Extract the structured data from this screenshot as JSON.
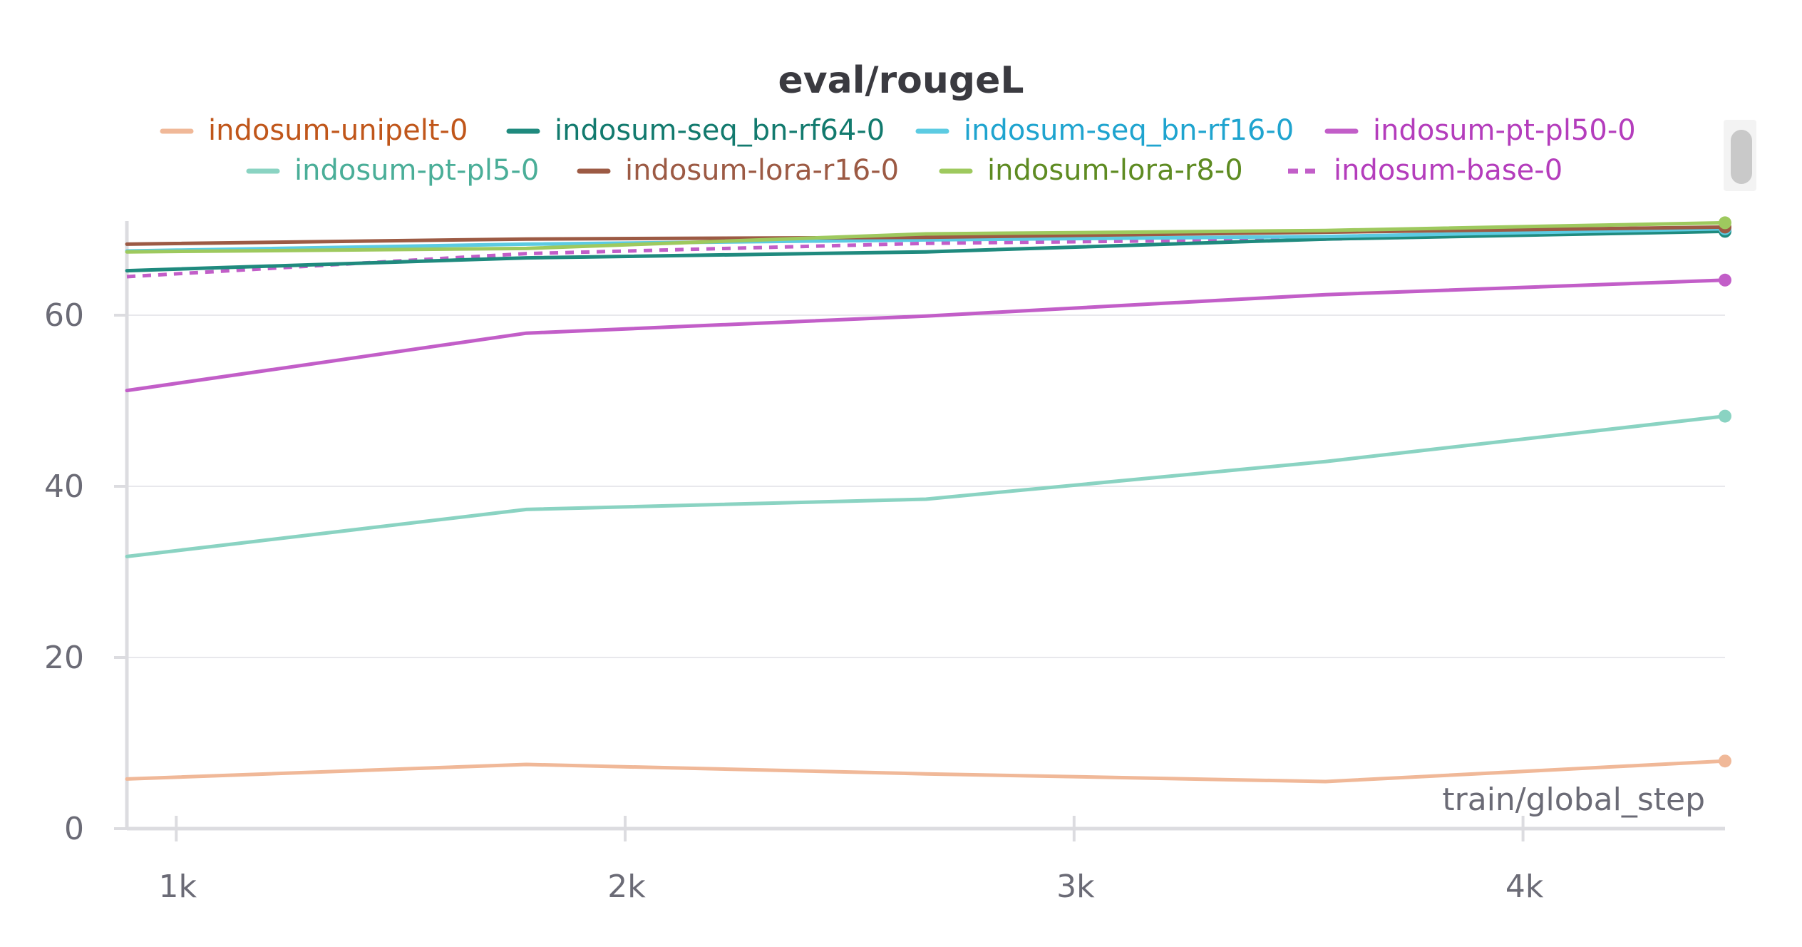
{
  "chart_data": {
    "type": "line",
    "title": "eval/rougeL",
    "xlabel": "train/global_step",
    "ylabel": "",
    "xlim": [
      890,
      4450
    ],
    "ylim": [
      0,
      71
    ],
    "x_ticks": [
      {
        "value": 1000,
        "label": "1k"
      },
      {
        "value": 2000,
        "label": "2k"
      },
      {
        "value": 3000,
        "label": "3k"
      },
      {
        "value": 4000,
        "label": "4k"
      }
    ],
    "y_ticks": [
      {
        "value": 0,
        "label": "0"
      },
      {
        "value": 20,
        "label": "20"
      },
      {
        "value": 40,
        "label": "40"
      },
      {
        "value": 60,
        "label": "60"
      }
    ],
    "grid": true,
    "legend_position": "top",
    "series": [
      {
        "name": "indosum-unipelt-0",
        "color": "#f0b898",
        "text_color": "#c0561a",
        "dashed": false,
        "x": [
          890,
          1780,
          2670,
          3560,
          4450
        ],
        "y": [
          5.8,
          7.5,
          6.4,
          5.5,
          7.9
        ]
      },
      {
        "name": "indosum-seq_bn-rf64-0",
        "color": "#1f8a7e",
        "text_color": "#127a6e",
        "dashed": false,
        "x": [
          890,
          1780,
          2670,
          3560,
          4450
        ],
        "y": [
          65.2,
          66.7,
          67.4,
          68.9,
          69.8
        ]
      },
      {
        "name": "indosum-seq_bn-rf16-0",
        "color": "#5ccbe2",
        "text_color": "#1fa4cf",
        "dashed": false,
        "x": [
          890,
          1780,
          2670,
          3560,
          4450
        ],
        "y": [
          67.5,
          68.3,
          68.8,
          69.2,
          70.1
        ]
      },
      {
        "name": "indosum-pt-pl50-0",
        "color": "#c25ec8",
        "text_color": "#b43dbc",
        "dashed": false,
        "x": [
          890,
          1780,
          2670,
          3560,
          4450
        ],
        "y": [
          51.2,
          57.9,
          59.9,
          62.4,
          64.1
        ]
      },
      {
        "name": "indosum-pt-pl5-0",
        "color": "#8ad3c2",
        "text_color": "#4aae98",
        "dashed": false,
        "x": [
          890,
          1780,
          2670,
          3560,
          4450
        ],
        "y": [
          31.8,
          37.3,
          38.5,
          42.9,
          48.2
        ]
      },
      {
        "name": "indosum-lora-r16-0",
        "color": "#9c5a44",
        "text_color": "#9c5a44",
        "dashed": false,
        "x": [
          890,
          1780,
          2670,
          3560,
          4450
        ],
        "y": [
          68.3,
          68.9,
          69.1,
          69.7,
          70.3
        ]
      },
      {
        "name": "indosum-lora-r8-0",
        "color": "#9ec95e",
        "text_color": "#5e8b22",
        "dashed": false,
        "x": [
          890,
          1780,
          2670,
          3560,
          4450
        ],
        "y": [
          67.4,
          67.8,
          69.5,
          69.9,
          70.8
        ]
      },
      {
        "name": "indosum-base-0",
        "color": "#c25ec8",
        "text_color": "#b43dbc",
        "dashed": true,
        "x": [
          890,
          1780,
          2670,
          3560,
          4450
        ],
        "y": [
          64.5,
          67.2,
          68.4,
          68.9,
          69.9
        ]
      }
    ]
  }
}
